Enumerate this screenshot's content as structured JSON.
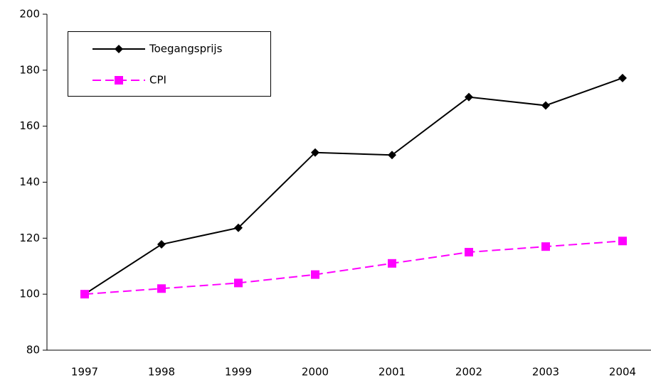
{
  "chart_data": {
    "type": "line",
    "categories": [
      "1997",
      "1998",
      "1999",
      "2000",
      "2001",
      "2002",
      "2003",
      "2004"
    ],
    "series": [
      {
        "name": "Toegangsprijs",
        "color": "#000000",
        "values": [
          100,
          117.8,
          123.7,
          150.6,
          149.7,
          170.4,
          167.4,
          177.2
        ]
      },
      {
        "name": "CPI",
        "color": "#ff00ff",
        "values": [
          100,
          102,
          104,
          107,
          111,
          115,
          117,
          119
        ]
      }
    ],
    "ylim": [
      80,
      200
    ],
    "yticks": [
      80,
      100,
      120,
      140,
      160,
      180,
      200
    ]
  }
}
